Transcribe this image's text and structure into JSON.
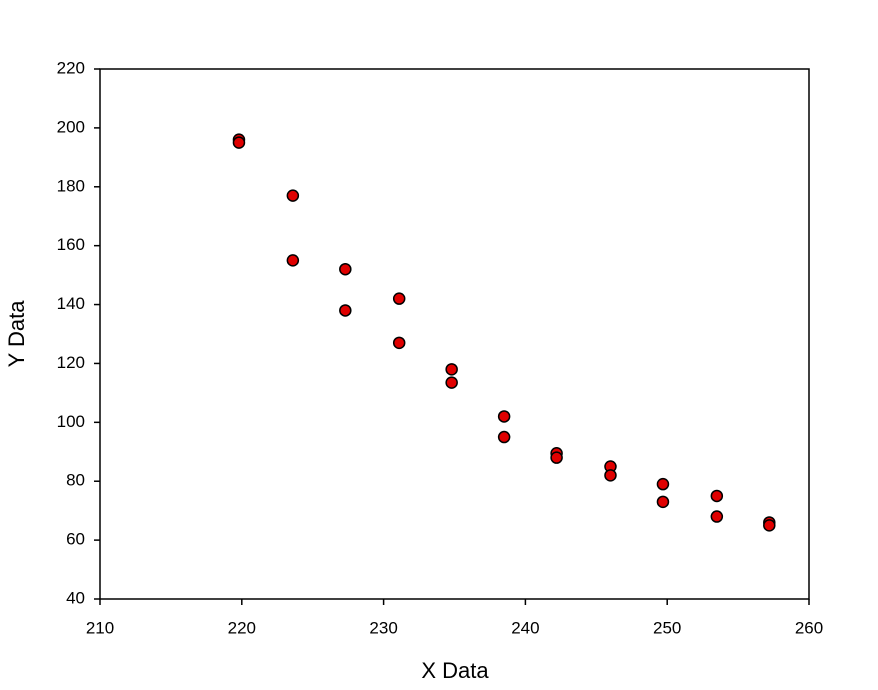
{
  "chart_data": {
    "type": "scatter",
    "x_label": "X Data",
    "y_label": "Y Data",
    "x": [
      219.8,
      219.8,
      223.6,
      223.6,
      227.3,
      227.3,
      231.1,
      231.1,
      234.8,
      234.8,
      238.5,
      238.5,
      242.2,
      242.2,
      246.0,
      246.0,
      249.7,
      249.7,
      253.5,
      253.5,
      257.2,
      257.2
    ],
    "values": [
      196,
      195,
      177,
      155,
      152,
      138,
      142,
      127,
      118,
      113.5,
      102,
      95,
      89.5,
      88,
      85,
      82,
      79,
      73,
      75,
      68,
      66,
      65
    ],
    "color": "#e00000",
    "edgecolor": "#000000",
    "xlim": [
      210,
      260
    ],
    "xticks": [
      210,
      220,
      230,
      240,
      250,
      260
    ],
    "ylim": [
      40,
      220
    ],
    "yticks": [
      40,
      60,
      80,
      100,
      120,
      140,
      160,
      180,
      200,
      220
    ],
    "grid": false
  }
}
